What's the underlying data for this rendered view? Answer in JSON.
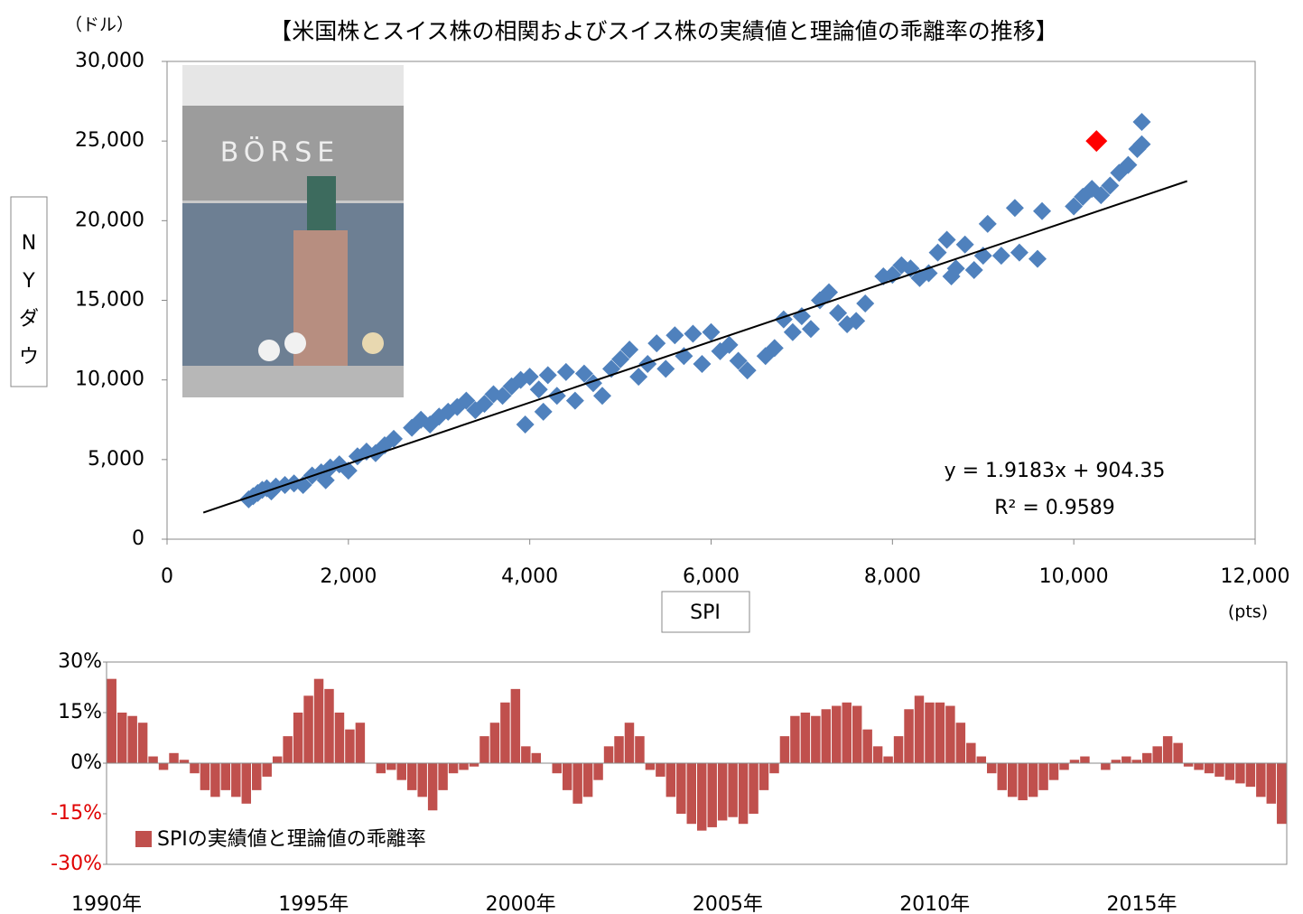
{
  "chart_data": [
    {
      "type": "scatter",
      "title": "【米国株とスイス株の相関およびスイス株の実績値と理論値の乖離率の推移】",
      "y_unit": "（ドル）",
      "y_label": "NYダウ",
      "x_label": "SPI",
      "x_unit": "(pts)",
      "equation": "y = 1.9183x + 904.35",
      "r_squared": "R² = 0.9589",
      "xlim": [
        0,
        12000
      ],
      "xticks": [
        0,
        {
          "value": 2000,
          "label": "2,000"
        },
        {
          "value": 4000,
          "label": "4,000"
        },
        {
          "value": 6000,
          "label": "6,000"
        },
        {
          "value": 8000,
          "label": "8,000"
        },
        {
          "value": 10000,
          "label": "10,000"
        },
        {
          "value": 12000,
          "label": "12,000"
        }
      ],
      "ylim": [
        0,
        30000
      ],
      "yticks": [
        0,
        {
          "value": 5000,
          "label": "5,000"
        },
        {
          "value": 10000,
          "label": "10,000"
        },
        {
          "value": 15000,
          "label": "15,000"
        },
        {
          "value": 20000,
          "label": "20,000"
        },
        {
          "value": 25000,
          "label": "25,000"
        },
        {
          "value": 30000,
          "label": "30,000"
        }
      ],
      "series": [
        {
          "color": "#4f81bd",
          "x": [
            900,
            950,
            1000,
            1050,
            1100,
            1150,
            1200,
            1300,
            1400,
            1500,
            1600,
            1700,
            1750,
            1800,
            1900,
            2000,
            2100,
            2200,
            2300,
            2400,
            2500,
            2700,
            2800,
            2900,
            3000,
            3100,
            3200,
            3300,
            3400,
            3500,
            3600,
            3700,
            3800,
            3900,
            3950,
            4000,
            4100,
            4150,
            4200,
            4300,
            4400,
            4500,
            4600,
            4700,
            4800,
            4900,
            5000,
            5100,
            5200,
            5300,
            5400,
            5500,
            5600,
            5700,
            5800,
            5900,
            6000,
            6100,
            6200,
            6300,
            6400,
            6600,
            6700,
            6800,
            6900,
            7000,
            7100,
            7200,
            7300,
            7400,
            7500,
            7600,
            7700,
            7900,
            8000,
            8100,
            8200,
            8300,
            8400,
            8500,
            8600,
            8650,
            8700,
            8800,
            8900,
            9000,
            9050,
            9200,
            9400,
            9600,
            9350,
            9650,
            10000,
            10100,
            10200,
            10300,
            10400,
            10500,
            10600,
            10700,
            10750,
            10750
          ],
          "values": [
            2500,
            2700,
            2900,
            3100,
            3200,
            3000,
            3300,
            3400,
            3500,
            3400,
            4000,
            4200,
            3700,
            4500,
            4700,
            4300,
            5200,
            5500,
            5400,
            5900,
            6300,
            7000,
            7500,
            7200,
            7700,
            8000,
            8300,
            8700,
            8100,
            8500,
            9100,
            9000,
            9600,
            10000,
            7200,
            10200,
            9400,
            8000,
            10300,
            9000,
            10500,
            8700,
            10400,
            9800,
            9000,
            10700,
            11300,
            11900,
            10200,
            11000,
            12300,
            10700,
            12800,
            11500,
            12900,
            11000,
            13000,
            11800,
            12200,
            11200,
            10600,
            11500,
            12000,
            13800,
            13000,
            14000,
            13200,
            15000,
            15500,
            14200,
            13500,
            13700,
            14800,
            16500,
            16600,
            17200,
            17000,
            16400,
            16700,
            18000,
            18800,
            16500,
            17000,
            18500,
            16900,
            17800,
            19800,
            17800,
            18000,
            17600,
            20800,
            20600,
            20900,
            21500,
            22000,
            21600,
            22200,
            23000,
            23500,
            24500,
            26200,
            24800
          ]
        },
        {
          "color": "#ff0000",
          "x": [
            10250
          ],
          "values": [
            25000
          ]
        }
      ],
      "trendline": {
        "color": "#000000",
        "x": [
          400,
          11250
        ],
        "values": [
          1672,
          22486
        ]
      }
    },
    {
      "type": "bar",
      "legend": "SPIの実績値と理論値の乖離率",
      "color": "#c0504d",
      "legend_position": "lower left",
      "ylim": [
        -30,
        30
      ],
      "yticks": [
        {
          "value": -30,
          "label": "-30%"
        },
        {
          "value": -15,
          "label": "-15%"
        },
        {
          "value": 0,
          "label": "0%"
        },
        {
          "value": 15,
          "label": "15%"
        },
        {
          "value": 30,
          "label": "30%"
        }
      ],
      "categories": [
        "1990年",
        null,
        null,
        null,
        null,
        null,
        null,
        null,
        null,
        null,
        null,
        null,
        null,
        null,
        null,
        null,
        null,
        null,
        null,
        null,
        "1995年",
        null,
        null,
        null,
        null,
        null,
        null,
        null,
        null,
        null,
        null,
        null,
        null,
        null,
        null,
        null,
        null,
        null,
        null,
        null,
        "2000年",
        null,
        null,
        null,
        null,
        null,
        null,
        null,
        null,
        null,
        null,
        null,
        null,
        null,
        null,
        null,
        null,
        null,
        null,
        null,
        "2005年",
        null,
        null,
        null,
        null,
        null,
        null,
        null,
        null,
        null,
        null,
        null,
        null,
        null,
        null,
        null,
        null,
        null,
        null,
        null,
        "2010年",
        null,
        null,
        null,
        null,
        null,
        null,
        null,
        null,
        null,
        null,
        null,
        null,
        null,
        null,
        null,
        null,
        null,
        null,
        null,
        "2015年",
        null,
        null,
        null,
        null,
        null,
        null,
        null,
        null,
        null,
        null,
        null,
        null,
        null
      ],
      "values": [
        25,
        15,
        14,
        12,
        2,
        -2,
        3,
        1,
        -3,
        -8,
        -10,
        -8,
        -10,
        -12,
        -8,
        -4,
        2,
        8,
        15,
        20,
        25,
        22,
        15,
        10,
        12,
        0,
        -3,
        -2,
        -5,
        -8,
        -10,
        -14,
        -8,
        -3,
        -2,
        -1,
        8,
        12,
        18,
        22,
        5,
        3,
        0,
        -3,
        -8,
        -12,
        -10,
        -5,
        5,
        8,
        12,
        8,
        -2,
        -4,
        -10,
        -15,
        -18,
        -20,
        -19,
        -17,
        -16,
        -18,
        -15,
        -8,
        -3,
        8,
        14,
        15,
        14,
        16,
        17,
        18,
        17,
        10,
        5,
        2,
        8,
        16,
        20,
        18,
        18,
        17,
        12,
        6,
        2,
        -3,
        -8,
        -10,
        -11,
        -10,
        -8,
        -5,
        -2,
        1,
        2,
        0,
        -2,
        1,
        2,
        1,
        3,
        5,
        8,
        6,
        -1,
        -2,
        -3,
        -4,
        -5,
        -6,
        -7,
        -10,
        -12,
        -18
      ]
    }
  ]
}
